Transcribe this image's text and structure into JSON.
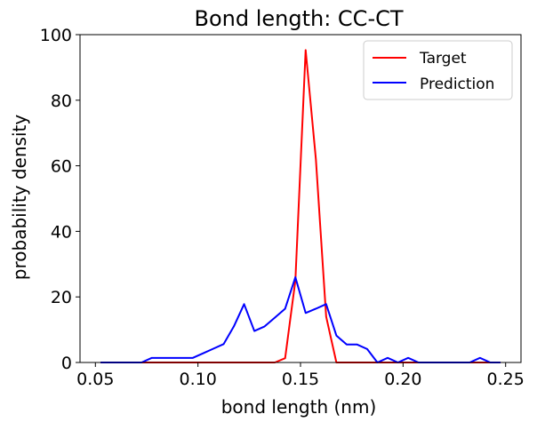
{
  "chart_data": {
    "type": "line",
    "title": "Bond length: CC-CT",
    "xlabel": "bond length (nm)",
    "ylabel": "probability density",
    "xlim": [
      0.0425,
      0.2575
    ],
    "ylim": [
      0,
      100
    ],
    "xticks": [
      0.05,
      0.1,
      0.15,
      0.2,
      0.25
    ],
    "xtick_labels": [
      "0.05",
      "0.10",
      "0.15",
      "0.20",
      "0.25"
    ],
    "yticks": [
      0,
      20,
      40,
      60,
      80,
      100
    ],
    "ytick_labels": [
      "0",
      "20",
      "40",
      "60",
      "80",
      "100"
    ],
    "grid": false,
    "legend_position": "top-right",
    "series": [
      {
        "name": "Target",
        "color": "#ff0000",
        "x": [
          0.0525,
          0.0575,
          0.0625,
          0.0675,
          0.0725,
          0.0775,
          0.0825,
          0.0875,
          0.0925,
          0.0975,
          0.1025,
          0.1075,
          0.1125,
          0.1175,
          0.1225,
          0.1275,
          0.1325,
          0.1375,
          0.1425,
          0.1475,
          0.1525,
          0.1575,
          0.1625,
          0.1675,
          0.1725,
          0.1775,
          0.1825,
          0.1875,
          0.1925,
          0.1975,
          0.2025,
          0.2075,
          0.2125,
          0.2175,
          0.2225,
          0.2275,
          0.2325,
          0.2375,
          0.2425,
          0.2475
        ],
        "y": [
          0,
          0,
          0,
          0,
          0,
          0,
          0,
          0,
          0,
          0,
          0,
          0,
          0,
          0,
          0,
          0,
          0,
          0,
          1.3,
          25,
          95.3,
          62,
          14,
          0,
          0,
          0,
          0,
          0,
          0,
          0,
          0,
          0,
          0,
          0,
          0,
          0,
          0,
          0,
          0,
          0
        ]
      },
      {
        "name": "Prediction",
        "color": "#0000ff",
        "x": [
          0.0525,
          0.0575,
          0.0625,
          0.0675,
          0.0725,
          0.0775,
          0.0825,
          0.0875,
          0.0925,
          0.0975,
          0.1025,
          0.1075,
          0.1125,
          0.1175,
          0.1225,
          0.1275,
          0.1325,
          0.1375,
          0.1425,
          0.1475,
          0.1525,
          0.1575,
          0.1625,
          0.1675,
          0.1725,
          0.1775,
          0.1825,
          0.1875,
          0.1925,
          0.1975,
          0.2025,
          0.2075,
          0.2125,
          0.2175,
          0.2225,
          0.2275,
          0.2325,
          0.2375,
          0.2425,
          0.2475
        ],
        "y": [
          0,
          0,
          0,
          0,
          0,
          1.4,
          1.4,
          1.4,
          1.4,
          1.4,
          2.8,
          4.2,
          5.6,
          11,
          17.8,
          9.6,
          11,
          13.7,
          16.4,
          26,
          15.1,
          16.4,
          17.8,
          8.2,
          5.5,
          5.5,
          4.1,
          0,
          1.4,
          0,
          1.4,
          0,
          0,
          0,
          0,
          0,
          0,
          1.4,
          0,
          0
        ]
      }
    ]
  }
}
